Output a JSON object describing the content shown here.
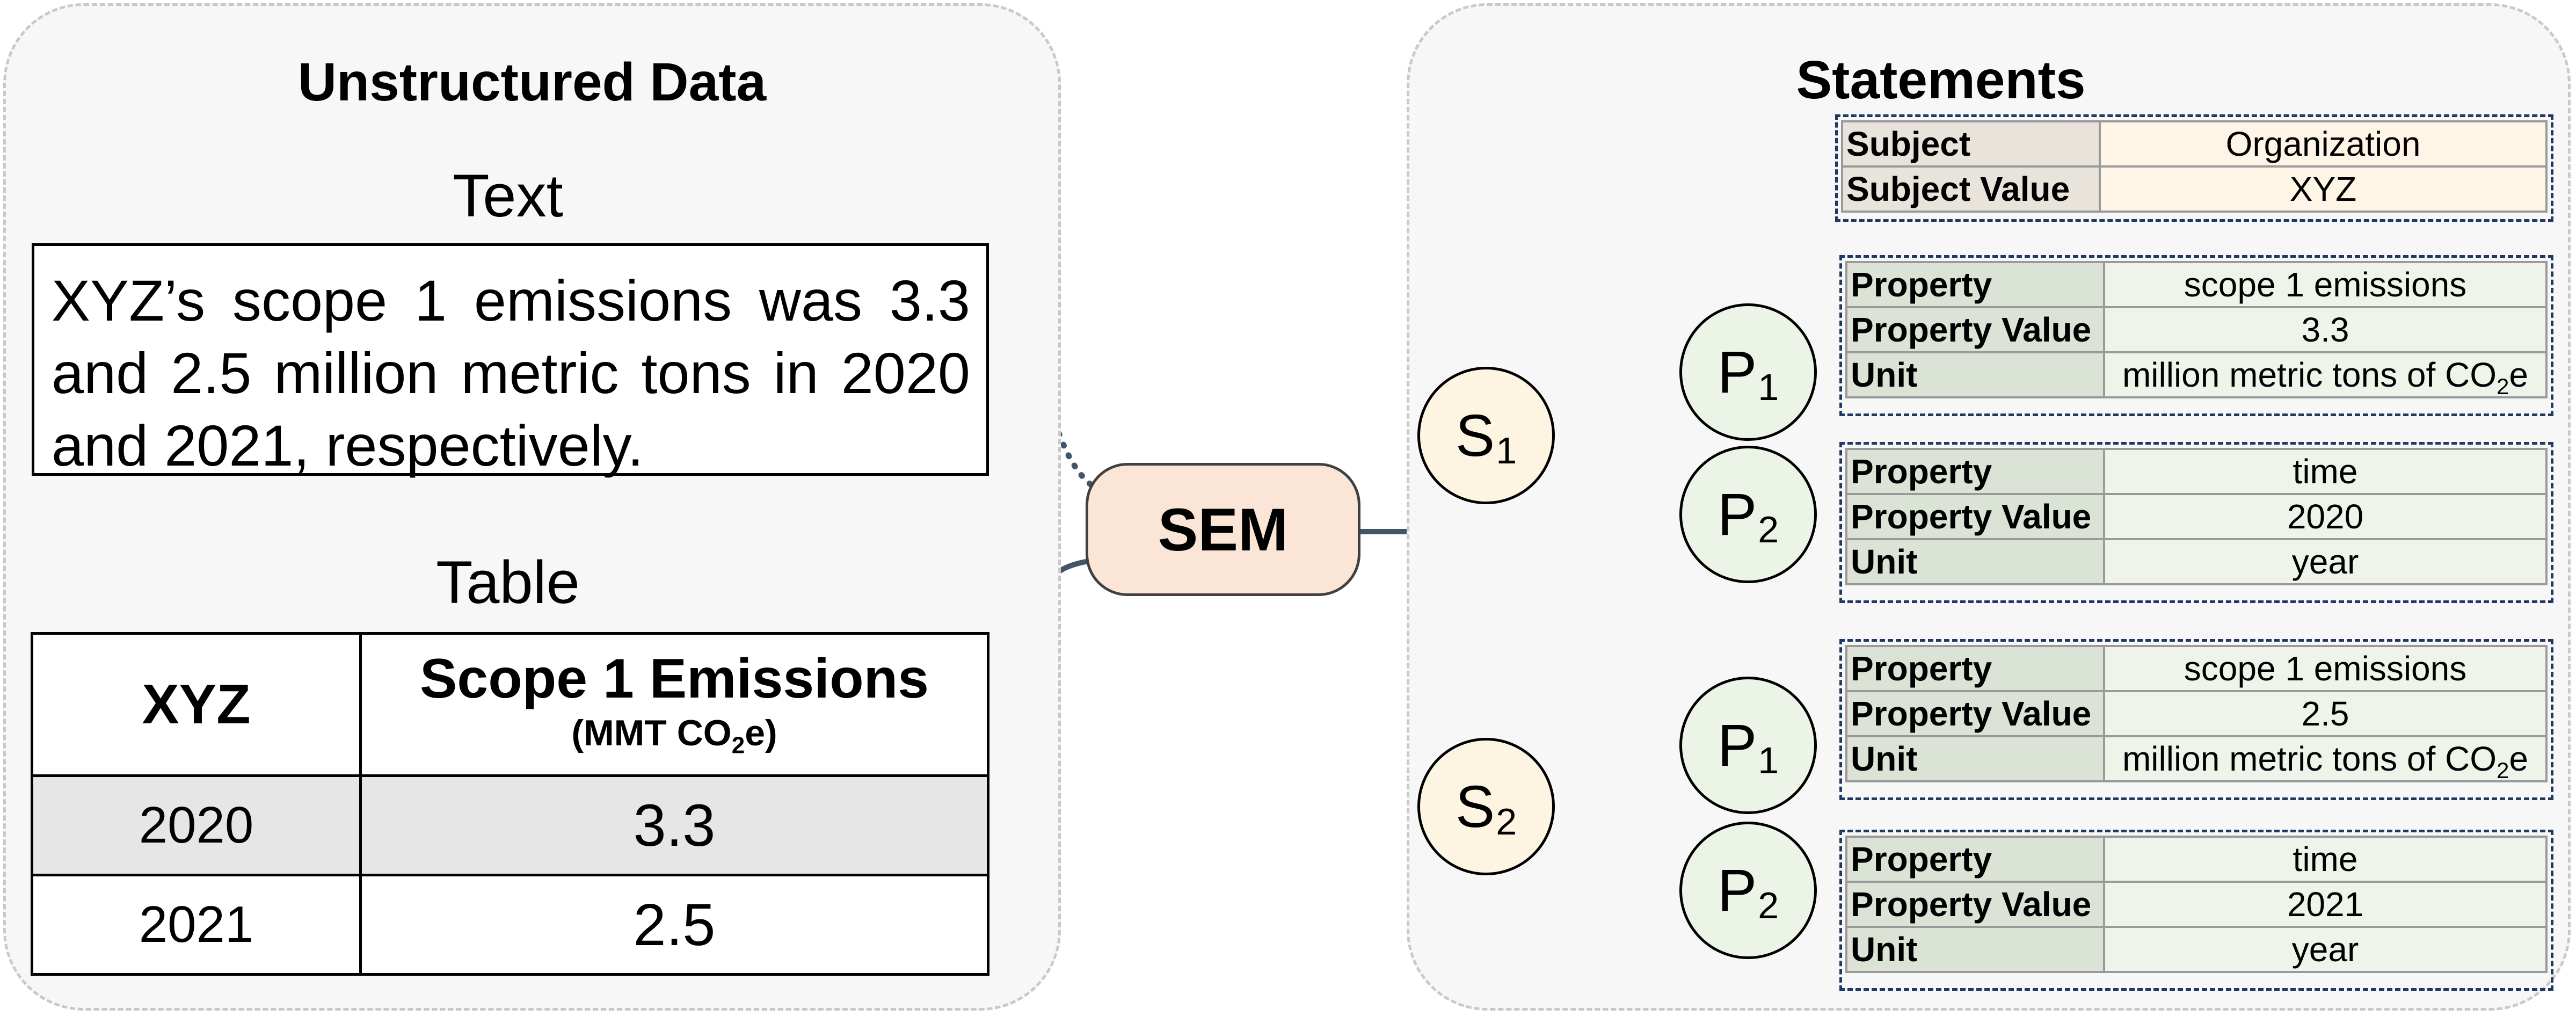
{
  "left": {
    "title": "Unstructured Data",
    "text_heading": "Text",
    "text_body": "XYZ’s scope 1 emissions was 3.3 and 2.5 million metric tons in 2020 and 2021, respectively.",
    "table_heading": "Table",
    "table": {
      "col1_header": "XYZ",
      "col2_header": "Scope 1 Emissions",
      "col2_unit_pre": "(MMT CO",
      "col2_unit_sub": "2",
      "col2_unit_post": "e)",
      "rows": [
        {
          "year": "2020",
          "value": "3.3"
        },
        {
          "year": "2021",
          "value": "2.5"
        }
      ]
    }
  },
  "center": {
    "label": "SEM"
  },
  "right": {
    "title": "Statements",
    "subject": [
      {
        "key": "Subject",
        "value": "Organization"
      },
      {
        "key": "Subject Value",
        "value": "XYZ"
      }
    ],
    "nodes": {
      "s1": {
        "letter": "S",
        "sub": "1"
      },
      "s2": {
        "letter": "S",
        "sub": "2"
      },
      "p1": {
        "letter": "P",
        "sub": "1"
      },
      "p2": {
        "letter": "P",
        "sub": "2"
      }
    },
    "properties": [
      {
        "property_key": "Property",
        "property": "scope 1 emissions",
        "value_key": "Property Value",
        "value": "3.3",
        "unit_key": "Unit",
        "unit_pre": "million metric tons of CO",
        "unit_sub": "2",
        "unit_post": "e"
      },
      {
        "property_key": "Property",
        "property": "time",
        "value_key": "Property Value",
        "value": "2020",
        "unit_key": "Unit",
        "unit_pre": "year",
        "unit_sub": "",
        "unit_post": ""
      },
      {
        "property_key": "Property",
        "property": "scope 1 emissions",
        "value_key": "Property Value",
        "value": "2.5",
        "unit_key": "Unit",
        "unit_pre": "million metric tons of CO",
        "unit_sub": "2",
        "unit_post": "e"
      },
      {
        "property_key": "Property",
        "property": "time",
        "value_key": "Property Value",
        "value": "2021",
        "unit_key": "Unit",
        "unit_pre": "year",
        "unit_sub": "",
        "unit_post": ""
      }
    ]
  },
  "colors": {
    "panel_bg": "#f7f7f7",
    "sem_fill": "#fbe5d6",
    "s_node_fill": "#fdf5e1",
    "p_node_fill": "#ebf4e7",
    "connector": "#44546a"
  }
}
